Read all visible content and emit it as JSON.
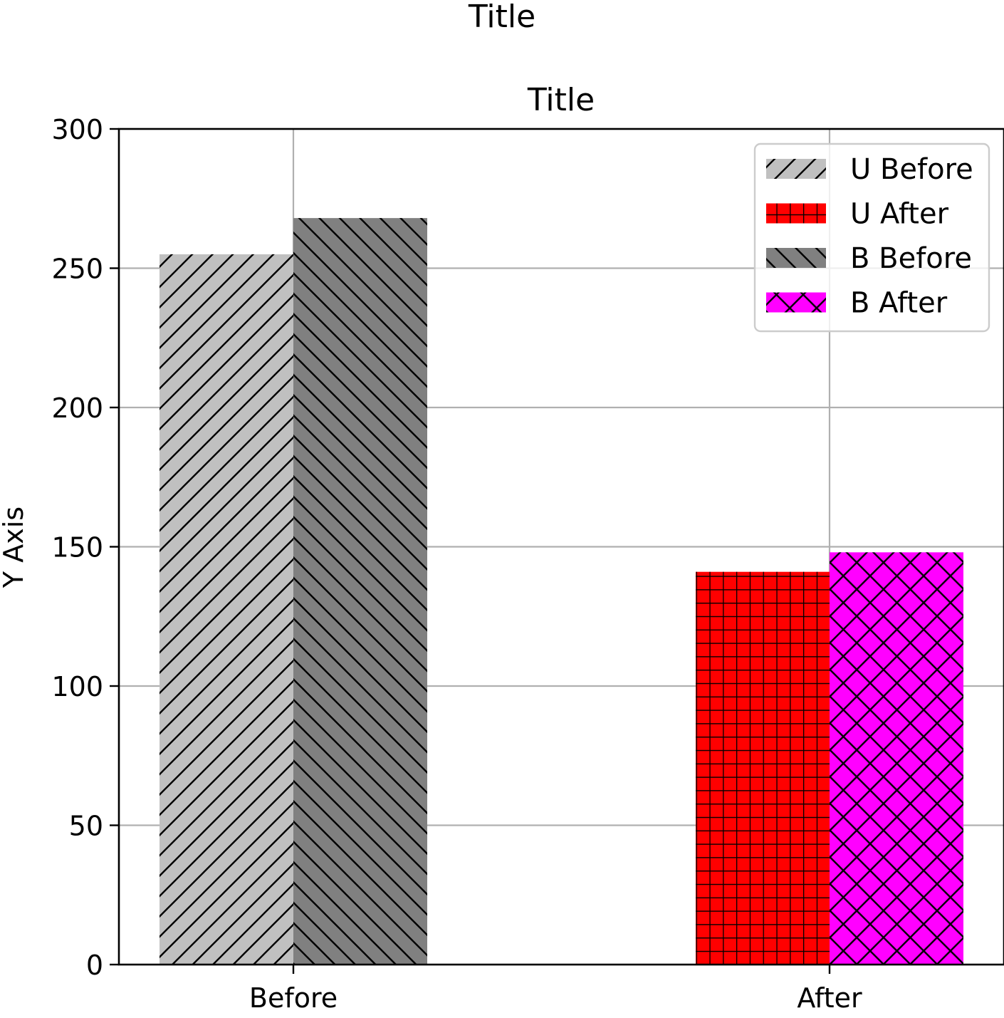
{
  "figure": {
    "suptitle": "Title"
  },
  "chart_data": {
    "type": "bar",
    "title": "Title",
    "xlabel": "",
    "ylabel": "Y Axis",
    "categories": [
      "Before",
      "After"
    ],
    "ylim": [
      0,
      300
    ],
    "yticks": [
      0,
      50,
      100,
      150,
      200,
      250,
      300
    ],
    "grid": true,
    "legend_position": "top-right",
    "series": [
      {
        "name": "U Before",
        "values": [
          255,
          null
        ],
        "color": "#c0c0c0",
        "hatch": "diagonal-up"
      },
      {
        "name": "U After",
        "values": [
          null,
          141
        ],
        "color": "#ff0000",
        "hatch": "grid"
      },
      {
        "name": "B Before",
        "values": [
          268,
          null
        ],
        "color": "#808080",
        "hatch": "diagonal-down"
      },
      {
        "name": "B After",
        "values": [
          null,
          148
        ],
        "color": "#ff00ff",
        "hatch": "crosshatch"
      }
    ]
  }
}
